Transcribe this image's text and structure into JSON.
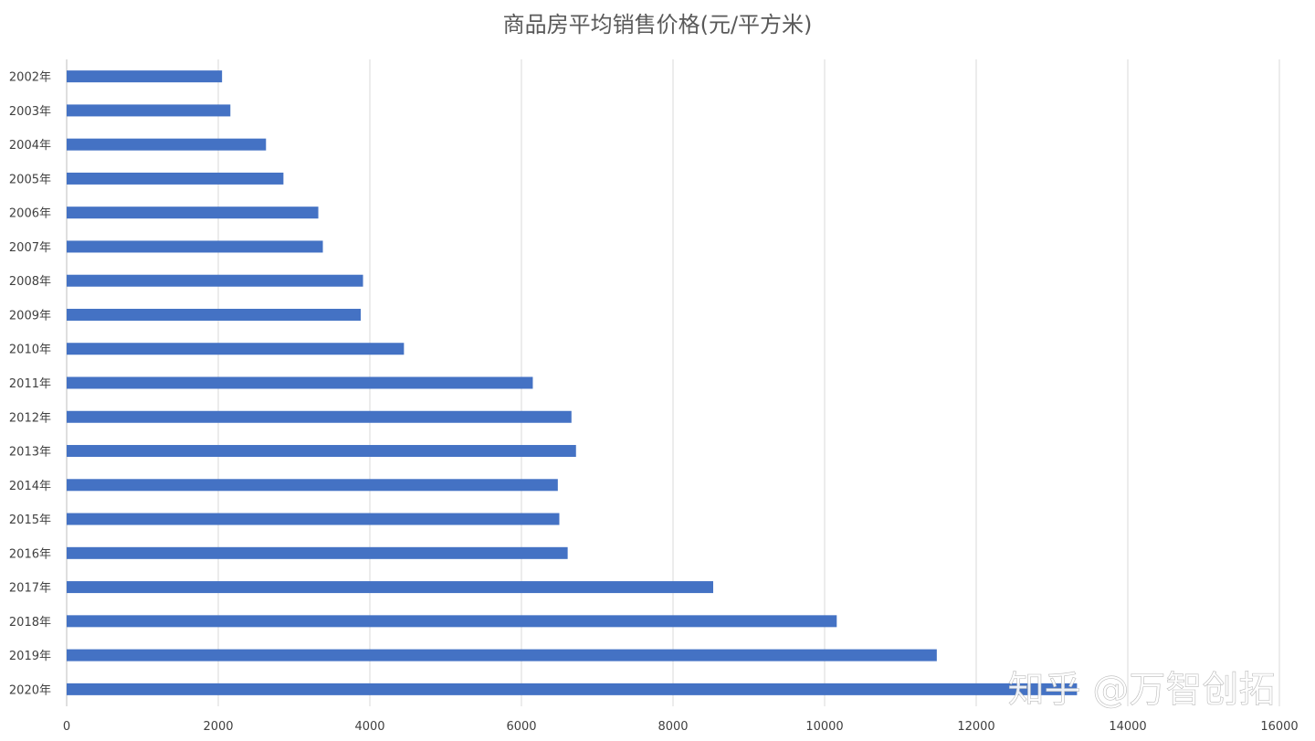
{
  "chart_data": {
    "type": "bar",
    "orientation": "horizontal",
    "title": "商品房平均销售价格(元/平方米)",
    "categories": [
      "2002年",
      "2003年",
      "2004年",
      "2005年",
      "2006年",
      "2007年",
      "2008年",
      "2009年",
      "2010年",
      "2011年",
      "2012年",
      "2013年",
      "2014年",
      "2015年",
      "2016年",
      "2017年",
      "2018年",
      "2019年",
      "2020年"
    ],
    "values": [
      2050,
      2160,
      2630,
      2860,
      3320,
      3380,
      3910,
      3880,
      4450,
      6150,
      6660,
      6720,
      6480,
      6500,
      6610,
      8530,
      10160,
      11480,
      13330
    ],
    "xlim": [
      0,
      16000
    ],
    "xticks": [
      0,
      2000,
      4000,
      6000,
      8000,
      10000,
      12000,
      14000,
      16000
    ],
    "grid": "vertical",
    "legend": "none",
    "bar_color": "#4472c4"
  },
  "watermark": "知乎 @万智创拓"
}
